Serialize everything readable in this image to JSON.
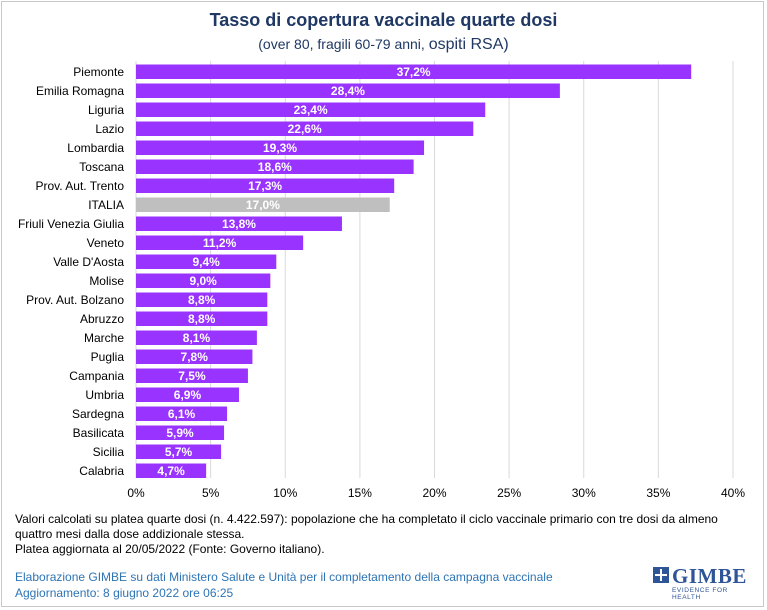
{
  "title": "Tasso di copertura vaccinale quarte dosi",
  "subtitle": "(over 80, fragili 60-79 anni,",
  "subtitle_rsa": "ospiti RSA)",
  "chart_data": {
    "type": "bar",
    "orientation": "horizontal",
    "categories": [
      "Piemonte",
      "Emilia Romagna",
      "Liguria",
      "Lazio",
      "Lombardia",
      "Toscana",
      "Prov. Aut. Trento",
      "ITALIA",
      "Friuli Venezia Giulia",
      "Veneto",
      "Valle D'Aosta",
      "Molise",
      "Prov. Aut. Bolzano",
      "Abruzzo",
      "Marche",
      "Puglia",
      "Campania",
      "Umbria",
      "Sardegna",
      "Basilicata",
      "Sicilia",
      "Calabria"
    ],
    "values": [
      37.2,
      28.4,
      23.4,
      22.6,
      19.3,
      18.6,
      17.3,
      17.0,
      13.8,
      11.2,
      9.4,
      9.0,
      8.8,
      8.8,
      8.1,
      7.8,
      7.5,
      6.9,
      6.1,
      5.9,
      5.7,
      4.7
    ],
    "value_labels": [
      "37,2%",
      "28,4%",
      "23,4%",
      "22,6%",
      "19,3%",
      "18,6%",
      "17,3%",
      "17,0%",
      "13,8%",
      "11,2%",
      "9,4%",
      "9,0%",
      "8,8%",
      "8,8%",
      "8,1%",
      "7,8%",
      "7,5%",
      "6,9%",
      "6,1%",
      "5,9%",
      "5,7%",
      "4,7%"
    ],
    "xlim": [
      0,
      40
    ],
    "x_ticks": [
      0,
      5,
      10,
      15,
      20,
      25,
      30,
      35,
      40
    ],
    "x_tick_labels": [
      "0%",
      "5%",
      "10%",
      "15%",
      "20%",
      "25%",
      "30%",
      "35%",
      "40%"
    ],
    "grid": true,
    "colors": {
      "bar": "#9933ff",
      "highlight": "#bfbfbf",
      "label_text": "#ffffff",
      "grid": "#d9d9d9"
    },
    "highlight_category": "ITALIA"
  },
  "note_lines": [
    "Valori calcolati su platea quarte dosi (n. 4.422.597): popolazione che ha completato il ciclo vaccinale primario con tre dosi da almeno quattro mesi dalla dose addizionale stessa.",
    "Platea aggiornata al 20/05/2022 (Fonte: Governo italiano)."
  ],
  "footer": {
    "source": "Elaborazione GIMBE su dati Ministero Salute e Unità per il completamento della campagna vaccinale",
    "updated": "Aggiornamento: 8 giugno 2022 ore 06:25"
  },
  "logo": {
    "name": "GIMBE",
    "tagline": "EVIDENCE FOR HEALTH",
    "color": "#2e5597"
  }
}
